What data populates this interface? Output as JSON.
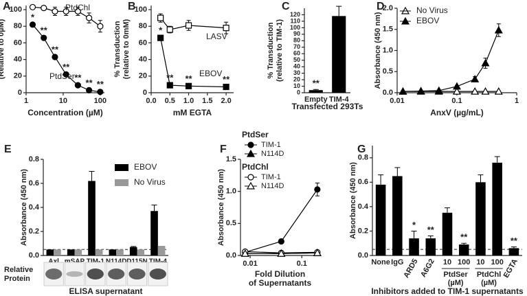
{
  "chart_data": [
    {
      "type": "line",
      "panel": "A",
      "x_label": "Concentration (µM)",
      "y_label": [
        "% Transduction",
        "(Relative to 0µM)"
      ],
      "xscale": "log",
      "xlim": [
        1,
        130
      ],
      "xticks": [
        1,
        10,
        100
      ],
      "ylim": [
        0,
        105
      ],
      "yticks": [
        0,
        20,
        40,
        60,
        80,
        100
      ],
      "x": [
        1.5,
        3,
        6,
        12,
        25,
        50,
        100
      ],
      "legend": "inline",
      "series": [
        {
          "name": "PtdChl",
          "color": "#000000",
          "marker": "circle",
          "filled": false,
          "values": [
            103,
            102,
            98,
            98,
            98,
            90,
            80
          ],
          "errors": [
            2,
            2,
            5,
            5,
            5,
            6,
            7
          ]
        },
        {
          "name": "PtdSer",
          "color": "#000000",
          "marker": "circle",
          "filled": true,
          "values": [
            82,
            66,
            43,
            22,
            9,
            3,
            1
          ],
          "errors": [
            2,
            2,
            2,
            2,
            1,
            1,
            1
          ],
          "significance": [
            "*",
            "**",
            "**",
            "**",
            "**",
            "**",
            "**"
          ]
        }
      ]
    },
    {
      "type": "line",
      "panel": "B",
      "x_label": "mM EGTA",
      "y_label": [
        "% Transduction",
        "(relative to 0mM)"
      ],
      "xlim": [
        0,
        2.2
      ],
      "xticks": [
        {
          "value": 0,
          "label": "0.0"
        },
        {
          "value": 0.5,
          "label": "0.5"
        },
        {
          "value": 1,
          "label": "1.0"
        },
        {
          "value": 1.5,
          "label": "1.5"
        },
        {
          "value": 2,
          "label": "2.0"
        }
      ],
      "ylim": [
        0,
        105
      ],
      "yticks": [
        0,
        20,
        40,
        60,
        80,
        100
      ],
      "x": [
        0.25,
        0.5,
        1,
        2
      ],
      "legend": "inline",
      "series": [
        {
          "name": "LASV",
          "color": "#000000",
          "marker": "square",
          "filled": false,
          "values": [
            90,
            76,
            81,
            78
          ],
          "errors": [
            5,
            4,
            6,
            7
          ]
        },
        {
          "name": "EBOV",
          "color": "#000000",
          "marker": "square",
          "filled": true,
          "values": [
            66,
            9,
            8,
            7
          ],
          "errors": [
            2,
            1,
            1,
            1
          ],
          "significance": [
            "*",
            "**",
            "**",
            "**"
          ]
        }
      ]
    },
    {
      "type": "bar",
      "panel": "C",
      "x_label": "Transfected 293Ts",
      "y_label": [
        "% Transduction",
        "(relative to TIM-1)"
      ],
      "ylim": [
        0,
        130
      ],
      "yticks": [
        0,
        10,
        20,
        30,
        40,
        50,
        60,
        70,
        80,
        90,
        100,
        110,
        120
      ],
      "categories": [
        "Empty",
        "TIM-4"
      ],
      "series": [
        {
          "color": "#000000",
          "values": [
            4,
            118
          ],
          "errors": [
            1,
            15
          ],
          "significance": [
            "**",
            null
          ]
        }
      ]
    },
    {
      "type": "line",
      "panel": "D",
      "x_label": "AnxV (µg/mL)",
      "y_label": [
        "Absorbance (450 nm)"
      ],
      "xscale": "log",
      "xlim": [
        0.01,
        1
      ],
      "xticks": [
        0.01,
        0.1,
        1
      ],
      "ylim": [
        0,
        2
      ],
      "yticks": [
        {
          "value": 0,
          "label": "0.0"
        },
        {
          "value": 0.5,
          "label": "0.5"
        },
        {
          "value": 1,
          "label": "1.0"
        },
        {
          "value": 1.5,
          "label": "1.5"
        },
        {
          "value": 2,
          "label": "2.0"
        }
      ],
      "x": [
        0.0125,
        0.025,
        0.05,
        0.1,
        0.2,
        0.3,
        0.5
      ],
      "legend": "top-left",
      "series": [
        {
          "name": "No Virus",
          "color": "#000000",
          "marker": "triangle",
          "filled": false,
          "values": [
            0.03,
            0.03,
            0.03,
            0.03,
            0.03,
            0.03,
            0.03
          ]
        },
        {
          "name": "EBOV",
          "color": "#000000",
          "marker": "triangle",
          "filled": true,
          "values": [
            0.03,
            0.04,
            0.05,
            0.15,
            0.32,
            0.7,
            1.48
          ],
          "errors": [
            0.01,
            0.01,
            0.01,
            0.02,
            0.06,
            0.12,
            0.15
          ]
        }
      ]
    },
    {
      "type": "bar",
      "panel": "E",
      "x_label": "ELISA supernatant",
      "y_label": [
        "Absorbance (450 nm)"
      ],
      "row_label": [
        "Relative",
        "Protein"
      ],
      "ylim": [
        0,
        0.8
      ],
      "yticks": [
        {
          "value": 0,
          "label": "0.0"
        },
        {
          "value": 0.2,
          "label": "0.2"
        },
        {
          "value": 0.4,
          "label": "0.4"
        },
        {
          "value": 0.6,
          "label": "0.6"
        },
        {
          "value": 0.8,
          "label": "0.8"
        }
      ],
      "threshold": 0.05,
      "legend": "top-right",
      "categories": [
        "Axl",
        "mSAP",
        "TIM-1",
        "N114D",
        "D115N",
        "TIM-4"
      ],
      "series": [
        {
          "name": "EBOV",
          "color": "#000000",
          "values": [
            0.05,
            0.05,
            0.62,
            0.05,
            0.07,
            0.37
          ],
          "errors": [
            0,
            0,
            0.08,
            0,
            0.005,
            0.05
          ]
        },
        {
          "name": "No Virus",
          "color": "#999999",
          "values": [
            0.05,
            0.05,
            0.05,
            0.05,
            0.05,
            0.08
          ]
        }
      ]
    },
    {
      "type": "line",
      "panel": "F",
      "x_label": [
        "Fold Dilution",
        "of Supernatants"
      ],
      "y_label": [
        "Absorbance (450 nm)"
      ],
      "xscale": "log",
      "xlim": [
        0.0065,
        0.22
      ],
      "xticks": [
        0.01,
        0.1
      ],
      "ylim": [
        0,
        1.5
      ],
      "yticks": [
        {
          "value": 0,
          "label": "0.0"
        },
        {
          "value": 0.5,
          "label": "0.5"
        },
        {
          "value": 1,
          "label": "1.0"
        },
        {
          "value": 1.5,
          "label": "1.5"
        }
      ],
      "x": [
        0.008,
        0.04,
        0.2
      ],
      "legend": "grouped",
      "legend_groups": [
        "PtdSer",
        "PtdChl"
      ],
      "series": [
        {
          "name": "TIM-1",
          "color": "#000000",
          "marker": "circle",
          "filled": true,
          "values": [
            0.05,
            0.22,
            1.03
          ],
          "errors": [
            0.01,
            0.02,
            0.1
          ]
        },
        {
          "name": "N114D",
          "color": "#000000",
          "marker": "triangle",
          "filled": true,
          "values": [
            0.03,
            0.03,
            0.04
          ]
        },
        {
          "name": "TIM-1",
          "color": "#000000",
          "marker": "circle",
          "filled": false,
          "values": [
            0.06,
            0.04,
            0.05
          ]
        },
        {
          "name": "N114D",
          "color": "#000000",
          "marker": "triangle",
          "filled": false,
          "values": [
            0.03,
            0.03,
            0.04
          ]
        }
      ]
    },
    {
      "type": "bar",
      "panel": "G",
      "x_label": "Inhibitors added to TIM-1 supernatants",
      "y_label": [
        "Absorbance (450 nm)"
      ],
      "ylim": [
        0,
        0.9
      ],
      "yticks": [
        {
          "value": 0,
          "label": "0.0"
        },
        {
          "value": 0.2,
          "label": "0.2"
        },
        {
          "value": 0.4,
          "label": "0.4"
        },
        {
          "value": 0.6,
          "label": "0.6"
        },
        {
          "value": 0.8,
          "label": "0.8"
        }
      ],
      "threshold": 0.05,
      "categories": [
        "None",
        "IgG",
        "ARD5",
        "A6G2",
        "10",
        "100",
        "10",
        "100",
        "EGTA"
      ],
      "category_group_labels": [
        [
          "PtdSer",
          "(µM)"
        ],
        [
          "PtdChl",
          "(µM)"
        ]
      ],
      "series": [
        {
          "color": "#000000",
          "values": [
            0.58,
            0.65,
            0.14,
            0.14,
            0.35,
            0.09,
            0.6,
            0.76,
            0.06
          ],
          "errors": [
            0.08,
            0.07,
            0.06,
            0.02,
            0.04,
            0.01,
            0.06,
            0.05,
            0.01
          ],
          "significance": [
            null,
            null,
            "*",
            "**",
            null,
            "**",
            null,
            null,
            "**"
          ]
        }
      ]
    }
  ]
}
